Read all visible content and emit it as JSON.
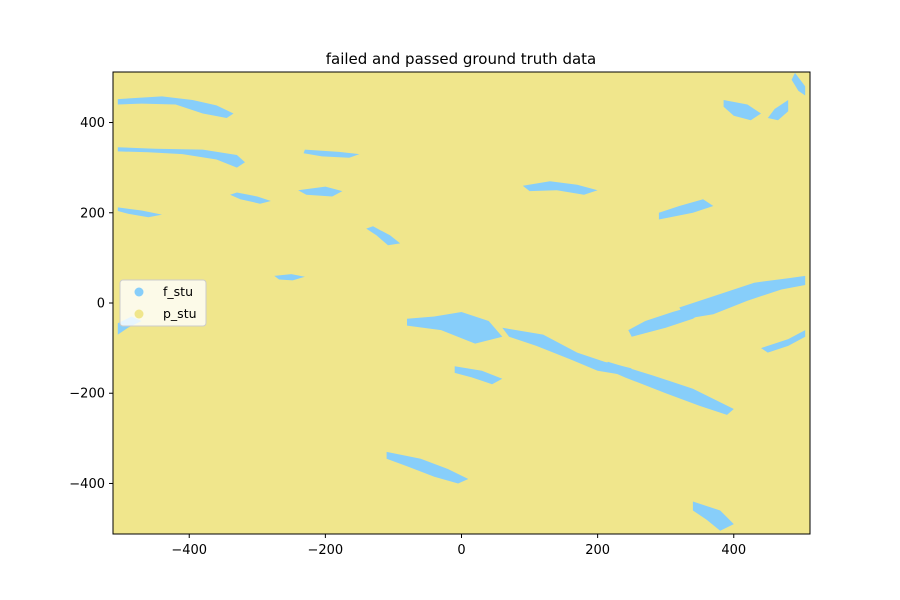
{
  "chart_data": {
    "type": "scatter",
    "title": "failed and passed ground truth data",
    "xlabel": "",
    "ylabel": "",
    "xlim": [
      -512,
      512
    ],
    "ylim": [
      -512,
      512
    ],
    "x_ticks": [
      -400,
      -200,
      0,
      200,
      400
    ],
    "x_tick_labels": [
      "−400",
      "−200",
      "0",
      "200",
      "400"
    ],
    "y_ticks": [
      -400,
      -200,
      0,
      200,
      400
    ],
    "y_tick_labels": [
      "−400",
      "−200",
      "0",
      "200",
      "400"
    ],
    "grid": false,
    "legend_position": "center-left",
    "series": [
      {
        "name": "f_stu",
        "color": "#87CEFA",
        "regions": [
          [
            [
              -505,
              452
            ],
            [
              -440,
              458
            ],
            [
              -395,
              450
            ],
            [
              -360,
              438
            ],
            [
              -335,
              420
            ],
            [
              -345,
              410
            ],
            [
              -380,
              420
            ],
            [
              -420,
              440
            ],
            [
              -470,
              442
            ],
            [
              -505,
              440
            ]
          ],
          [
            [
              -505,
              345
            ],
            [
              -450,
              342
            ],
            [
              -380,
              340
            ],
            [
              -330,
              328
            ],
            [
              -318,
              312
            ],
            [
              -330,
              300
            ],
            [
              -360,
              318
            ],
            [
              -410,
              330
            ],
            [
              -460,
              334
            ],
            [
              -505,
              336
            ]
          ],
          [
            [
              -230,
              340
            ],
            [
              -180,
              335
            ],
            [
              -150,
              330
            ],
            [
              -165,
              322
            ],
            [
              -205,
              325
            ],
            [
              -232,
              332
            ]
          ],
          [
            [
              -505,
              212
            ],
            [
              -470,
              205
            ],
            [
              -440,
              196
            ],
            [
              -460,
              190
            ],
            [
              -490,
              198
            ],
            [
              -505,
              204
            ]
          ],
          [
            [
              -330,
              245
            ],
            [
              -300,
              236
            ],
            [
              -280,
              226
            ],
            [
              -296,
              220
            ],
            [
              -325,
              230
            ],
            [
              -340,
              240
            ]
          ],
          [
            [
              -240,
              250
            ],
            [
              -200,
              258
            ],
            [
              -175,
              248
            ],
            [
              -190,
              236
            ],
            [
              -228,
              240
            ]
          ],
          [
            [
              -130,
              170
            ],
            [
              -105,
              150
            ],
            [
              -90,
              132
            ],
            [
              -108,
              128
            ],
            [
              -125,
              150
            ],
            [
              -140,
              165
            ]
          ],
          [
            [
              -80,
              -50
            ],
            [
              -30,
              -60
            ],
            [
              20,
              -90
            ],
            [
              60,
              -75
            ],
            [
              40,
              -40
            ],
            [
              0,
              -20
            ],
            [
              -40,
              -30
            ],
            [
              -80,
              -35
            ]
          ],
          [
            [
              60,
              -55
            ],
            [
              120,
              -70
            ],
            [
              170,
              -110
            ],
            [
              210,
              -130
            ],
            [
              250,
              -145
            ],
            [
              240,
              -160
            ],
            [
              200,
              -150
            ],
            [
              160,
              -125
            ],
            [
              110,
              -95
            ],
            [
              70,
              -75
            ]
          ],
          [
            [
              215,
              -130
            ],
            [
              280,
              -160
            ],
            [
              340,
              -190
            ],
            [
              380,
              -220
            ],
            [
              400,
              -235
            ],
            [
              390,
              -248
            ],
            [
              350,
              -228
            ],
            [
              300,
              -200
            ],
            [
              240,
              -165
            ],
            [
              210,
              -145
            ]
          ],
          [
            [
              250,
              -75
            ],
            [
              300,
              -55
            ],
            [
              340,
              -35
            ],
            [
              360,
              -15
            ],
            [
              345,
              -5
            ],
            [
              310,
              -20
            ],
            [
              270,
              -40
            ],
            [
              245,
              -60
            ]
          ],
          [
            [
              320,
              -10
            ],
            [
              380,
              20
            ],
            [
              430,
              45
            ],
            [
              480,
              55
            ],
            [
              505,
              60
            ],
            [
              505,
              40
            ],
            [
              470,
              30
            ],
            [
              420,
              5
            ],
            [
              370,
              -25
            ],
            [
              330,
              -35
            ]
          ],
          [
            [
              440,
              -100
            ],
            [
              480,
              -80
            ],
            [
              505,
              -60
            ],
            [
              505,
              -75
            ],
            [
              480,
              -95
            ],
            [
              450,
              -110
            ]
          ],
          [
            [
              -110,
              -330
            ],
            [
              -60,
              -345
            ],
            [
              -20,
              -368
            ],
            [
              10,
              -390
            ],
            [
              -5,
              -400
            ],
            [
              -40,
              -385
            ],
            [
              -80,
              -362
            ],
            [
              -110,
              -345
            ]
          ],
          [
            [
              -505,
              -70
            ],
            [
              -490,
              -55
            ],
            [
              -470,
              -40
            ],
            [
              -485,
              -30
            ],
            [
              -505,
              -45
            ]
          ],
          [
            [
              90,
              260
            ],
            [
              130,
              270
            ],
            [
              170,
              262
            ],
            [
              200,
              250
            ],
            [
              180,
              240
            ],
            [
              140,
              250
            ],
            [
              100,
              248
            ]
          ],
          [
            [
              340,
              -440
            ],
            [
              380,
              -460
            ],
            [
              400,
              -490
            ],
            [
              380,
              -505
            ],
            [
              360,
              -480
            ],
            [
              340,
              -460
            ]
          ],
          [
            [
              490,
              510
            ],
            [
              505,
              480
            ],
            [
              505,
              460
            ],
            [
              495,
              470
            ],
            [
              485,
              495
            ]
          ],
          [
            [
              385,
              450
            ],
            [
              420,
              440
            ],
            [
              440,
              420
            ],
            [
              425,
              405
            ],
            [
              400,
              415
            ],
            [
              385,
              435
            ]
          ],
          [
            [
              290,
              185
            ],
            [
              340,
              200
            ],
            [
              370,
              215
            ],
            [
              355,
              230
            ],
            [
              320,
              215
            ],
            [
              290,
              200
            ]
          ],
          [
            [
              480,
              450
            ],
            [
              460,
              430
            ],
            [
              450,
              410
            ],
            [
              465,
              405
            ],
            [
              480,
              425
            ]
          ],
          [
            [
              -10,
              -140
            ],
            [
              30,
              -150
            ],
            [
              60,
              -168
            ],
            [
              45,
              -180
            ],
            [
              15,
              -165
            ],
            [
              -10,
              -155
            ]
          ],
          [
            [
              -275,
              60
            ],
            [
              -250,
              64
            ],
            [
              -230,
              58
            ],
            [
              -248,
              50
            ],
            [
              -268,
              52
            ]
          ]
        ]
      },
      {
        "name": "p_stu",
        "color": "#F0E68C",
        "regions": []
      }
    ],
    "background_class": "p_stu"
  }
}
